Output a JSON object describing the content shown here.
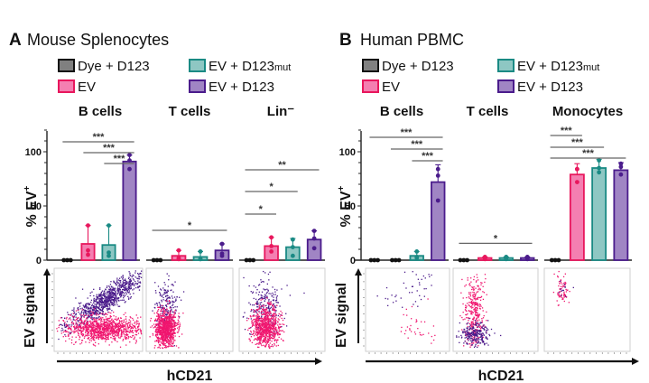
{
  "figure": {
    "panels": [
      {
        "letter": "A",
        "title": "Mouse Splenocytes",
        "legend": [
          {
            "label": "Dye + D123",
            "sub": "",
            "fill": "#808080",
            "stroke": "#111111"
          },
          {
            "label": "EV + D123",
            "sub": "mut",
            "fill": "#8ec7c3",
            "stroke": "#1a8a84"
          },
          {
            "label": "EV",
            "sub": "",
            "fill": "#f47fb1",
            "stroke": "#e8175d"
          },
          {
            "label": "EV + D123",
            "sub": "",
            "fill": "#a085c4",
            "stroke": "#4b1c8c"
          }
        ],
        "ylabel": "% EV",
        "ylabel_sup": "+",
        "scatter_ylabel": "EV signal",
        "scatter_xlabel": "hCD21"
      },
      {
        "letter": "B",
        "title": "Human PBMC",
        "legend": [
          {
            "label": "Dye + D123",
            "sub": "",
            "fill": "#808080",
            "stroke": "#111111"
          },
          {
            "label": "EV + D123",
            "sub": "mut",
            "fill": "#8ec7c3",
            "stroke": "#1a8a84"
          },
          {
            "label": "EV",
            "sub": "",
            "fill": "#f47fb1",
            "stroke": "#e8175d"
          },
          {
            "label": "EV + D123",
            "sub": "",
            "fill": "#a085c4",
            "stroke": "#4b1c8c"
          }
        ],
        "ylabel": "% EV",
        "ylabel_sup": "+",
        "scatter_ylabel": "EV signal",
        "scatter_xlabel": "hCD21"
      }
    ]
  },
  "chart_data": [
    {
      "type": "bar",
      "panel": "A",
      "title": "Mouse Splenocytes",
      "ylabel": "% EV+",
      "ylim": [
        0,
        120
      ],
      "yticks": [
        0,
        50,
        100
      ],
      "series_names": [
        "Dye + D123",
        "EV",
        "EV + D123mut",
        "EV + D123"
      ],
      "groups": [
        {
          "name": "B cells",
          "means": [
            0,
            15,
            14,
            91
          ],
          "errors": [
            0,
            17,
            18,
            6
          ],
          "points": [
            [
              0,
              0,
              0
            ],
            [
              5,
              9,
              32
            ],
            [
              4,
              7,
              32
            ],
            [
              84,
              92,
              97
            ]
          ],
          "significance": [
            {
              "from": 0,
              "to": 3,
              "label": "***"
            },
            {
              "from": 1,
              "to": 3,
              "label": "***"
            },
            {
              "from": 2,
              "to": 3,
              "label": "***"
            }
          ]
        },
        {
          "name": "T cells",
          "means": [
            0,
            4,
            3,
            9
          ],
          "errors": [
            0,
            5,
            5,
            6
          ],
          "points": [
            [
              0,
              0,
              0
            ],
            [
              1,
              2,
              9
            ],
            [
              1,
              1,
              8
            ],
            [
              4,
              6,
              15
            ]
          ],
          "significance": [
            {
              "from": 0,
              "to": 3,
              "label": "*"
            }
          ]
        },
        {
          "name": "Lin⁻",
          "means": [
            0,
            13,
            12,
            19
          ],
          "errors": [
            0,
            8,
            8,
            8
          ],
          "points": [
            [
              0,
              0,
              0
            ],
            [
              8,
              13,
              21
            ],
            [
              4,
              12,
              19
            ],
            [
              11,
              20,
              27
            ]
          ],
          "significance": [
            {
              "from": 0,
              "to": 1,
              "label": "*"
            },
            {
              "from": 0,
              "to": 2,
              "label": "*"
            },
            {
              "from": 0,
              "to": 3,
              "label": "**"
            }
          ]
        }
      ]
    },
    {
      "type": "bar",
      "panel": "B",
      "title": "Human PBMC",
      "ylabel": "% EV+",
      "ylim": [
        0,
        120
      ],
      "yticks": [
        0,
        50,
        100
      ],
      "series_names": [
        "Dye + D123",
        "EV",
        "EV + D123mut",
        "EV + D123"
      ],
      "groups": [
        {
          "name": "B cells",
          "means": [
            0,
            0,
            4,
            72
          ],
          "errors": [
            0,
            0,
            4,
            16
          ],
          "points": [
            [
              0,
              0,
              0
            ],
            [
              0,
              0,
              0
            ],
            [
              2,
              3,
              8
            ],
            [
              55,
              78,
              84
            ]
          ],
          "significance": [
            {
              "from": 0,
              "to": 3,
              "label": "***"
            },
            {
              "from": 1,
              "to": 3,
              "label": "***"
            },
            {
              "from": 2,
              "to": 3,
              "label": "***"
            }
          ]
        },
        {
          "name": "T cells",
          "means": [
            0,
            2,
            2,
            2
          ],
          "errors": [
            0,
            1,
            1,
            1
          ],
          "points": [
            [
              0,
              0,
              0
            ],
            [
              1,
              2,
              3
            ],
            [
              1,
              2,
              3
            ],
            [
              1,
              2,
              3
            ]
          ],
          "significance": [
            {
              "from": 0,
              "to": 3,
              "label": "*"
            }
          ]
        },
        {
          "name": "Monocytes",
          "means": [
            0,
            79,
            85,
            83
          ],
          "errors": [
            0,
            10,
            8,
            7
          ],
          "points": [
            [
              0,
              0,
              0
            ],
            [
              72,
              84,
              84
            ],
            [
              81,
              85,
              92
            ],
            [
              79,
              86,
              89
            ]
          ],
          "significance": [
            {
              "from": 0,
              "to": 1,
              "label": "***"
            },
            {
              "from": 0,
              "to": 2,
              "label": "***"
            },
            {
              "from": 0,
              "to": 3,
              "label": "***"
            }
          ]
        }
      ]
    }
  ]
}
